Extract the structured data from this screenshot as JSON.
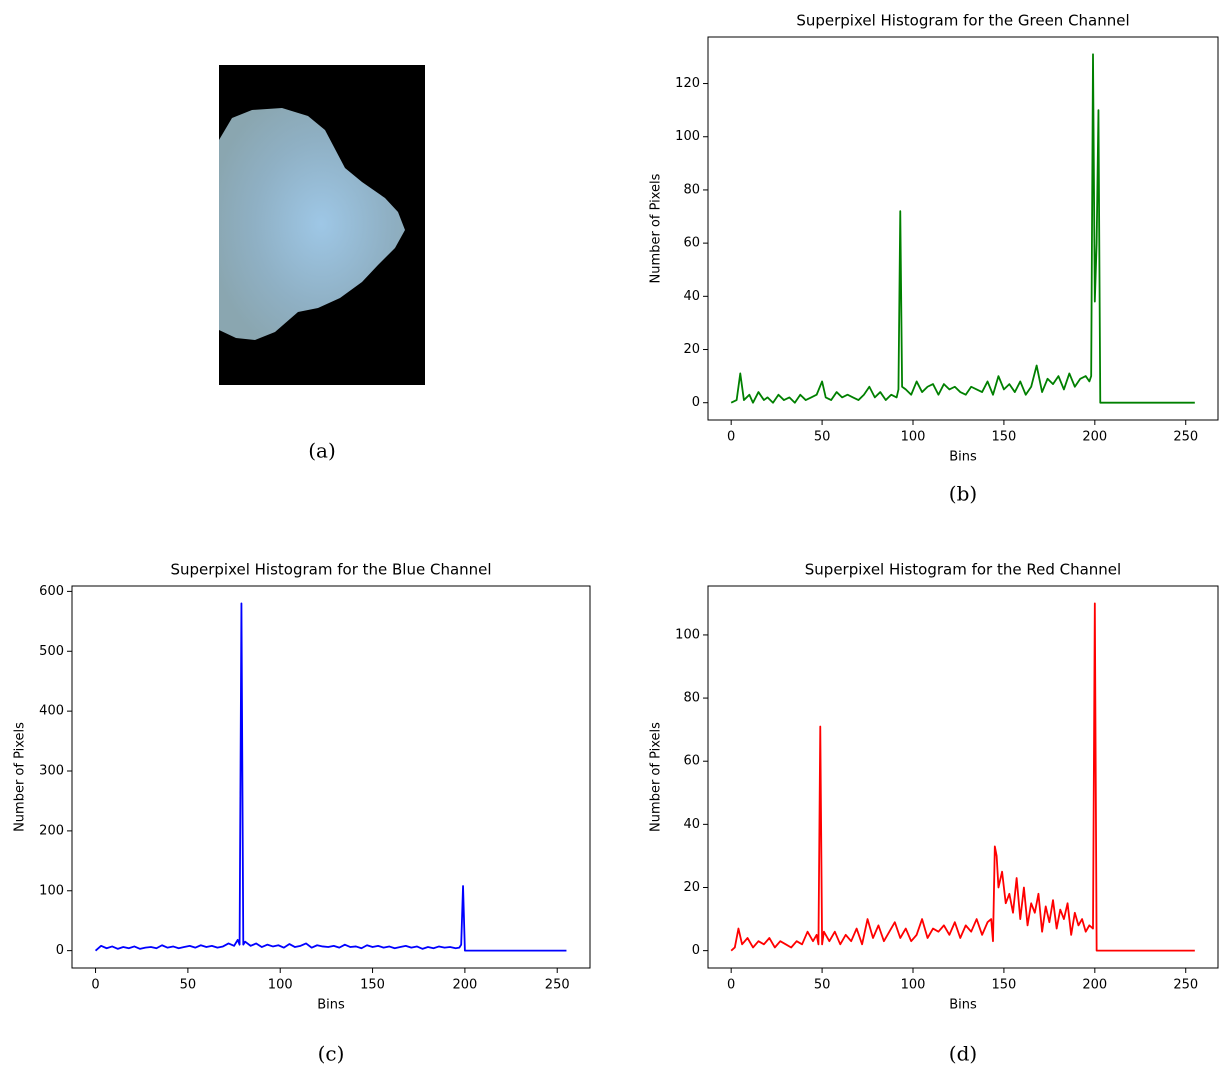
{
  "image_panel": {
    "caption": "(a)"
  },
  "chart_data": [
    {
      "type": "line",
      "title": "Superpixel Histogram for the Green Channel",
      "x_label": "Bins",
      "y_label": "Number of Pixels",
      "caption": "(b)",
      "xlim": [
        -12.75,
        267.75
      ],
      "xticks": [
        0,
        50,
        100,
        150,
        200,
        250
      ],
      "ylim": [
        -6.5,
        137.5
      ],
      "yticks": [
        0,
        20,
        40,
        60,
        80,
        100,
        120
      ],
      "series": [
        {
          "color": "#008000",
          "x": [
            0,
            3,
            5,
            7,
            10,
            12,
            15,
            18,
            20,
            23,
            26,
            29,
            32,
            35,
            38,
            41,
            44,
            47,
            50,
            52,
            55,
            58,
            61,
            64,
            67,
            70,
            73,
            76,
            79,
            82,
            85,
            88,
            91,
            92,
            93,
            94,
            96,
            99,
            102,
            105,
            108,
            111,
            114,
            117,
            120,
            123,
            126,
            129,
            132,
            135,
            138,
            141,
            144,
            147,
            150,
            153,
            156,
            159,
            162,
            165,
            168,
            171,
            174,
            177,
            180,
            183,
            186,
            189,
            192,
            195,
            197,
            198,
            199,
            200,
            201,
            202,
            203,
            205,
            255
          ],
          "values": [
            0,
            1,
            11,
            1,
            3,
            0,
            4,
            1,
            2,
            0,
            3,
            1,
            2,
            0,
            3,
            1,
            2,
            3,
            8,
            2,
            1,
            4,
            2,
            3,
            2,
            1,
            3,
            6,
            2,
            4,
            1,
            3,
            2,
            5,
            72,
            6,
            5,
            3,
            8,
            4,
            6,
            7,
            3,
            7,
            5,
            6,
            4,
            3,
            6,
            5,
            4,
            8,
            3,
            10,
            5,
            7,
            4,
            8,
            3,
            6,
            14,
            4,
            9,
            7,
            10,
            5,
            11,
            6,
            9,
            10,
            8,
            10,
            131,
            38,
            60,
            110,
            0,
            0,
            0
          ]
        }
      ]
    },
    {
      "type": "line",
      "title": "Superpixel Histogram for the Blue Channel",
      "x_label": "Bins",
      "y_label": "Number of Pixels",
      "caption": "(c)",
      "xlim": [
        -12.75,
        267.75
      ],
      "xticks": [
        0,
        50,
        100,
        150,
        200,
        250
      ],
      "ylim": [
        -29,
        609
      ],
      "yticks": [
        0,
        100,
        200,
        300,
        400,
        500,
        600
      ],
      "series": [
        {
          "color": "#0000ff",
          "x": [
            0,
            3,
            6,
            9,
            12,
            15,
            18,
            21,
            24,
            27,
            30,
            33,
            36,
            39,
            42,
            45,
            48,
            51,
            54,
            57,
            60,
            63,
            66,
            69,
            72,
            75,
            77,
            78,
            79,
            80,
            81,
            84,
            87,
            90,
            93,
            96,
            99,
            102,
            105,
            108,
            111,
            114,
            117,
            120,
            123,
            126,
            129,
            132,
            135,
            138,
            141,
            144,
            147,
            150,
            153,
            156,
            159,
            162,
            165,
            168,
            171,
            174,
            177,
            180,
            183,
            186,
            189,
            192,
            195,
            197,
            198,
            199,
            200,
            201,
            255
          ],
          "values": [
            0,
            8,
            4,
            7,
            3,
            6,
            4,
            7,
            3,
            5,
            6,
            4,
            9,
            5,
            7,
            4,
            6,
            8,
            5,
            9,
            6,
            8,
            5,
            7,
            12,
            8,
            18,
            10,
            580,
            10,
            15,
            8,
            12,
            6,
            10,
            7,
            9,
            5,
            11,
            6,
            8,
            12,
            5,
            9,
            7,
            6,
            8,
            5,
            10,
            6,
            7,
            4,
            9,
            6,
            8,
            5,
            7,
            4,
            6,
            8,
            5,
            7,
            3,
            6,
            4,
            7,
            5,
            6,
            4,
            5,
            10,
            108,
            0,
            0,
            0
          ]
        }
      ]
    },
    {
      "type": "line",
      "title": "Superpixel Histogram for the Red Channel",
      "x_label": "Bins",
      "y_label": "Number of Pixels",
      "caption": "(d)",
      "xlim": [
        -12.75,
        267.75
      ],
      "xticks": [
        0,
        50,
        100,
        150,
        200,
        250
      ],
      "ylim": [
        -5.5,
        115.5
      ],
      "yticks": [
        0,
        20,
        40,
        60,
        80,
        100
      ],
      "series": [
        {
          "color": "#ff0000",
          "x": [
            0,
            2,
            4,
            6,
            9,
            12,
            15,
            18,
            21,
            24,
            27,
            30,
            33,
            36,
            39,
            42,
            45,
            47,
            48,
            49,
            50,
            51,
            54,
            57,
            60,
            63,
            66,
            69,
            72,
            75,
            78,
            81,
            84,
            87,
            90,
            93,
            96,
            99,
            102,
            105,
            108,
            111,
            114,
            117,
            120,
            123,
            126,
            129,
            132,
            135,
            138,
            141,
            143,
            144,
            145,
            146,
            147,
            149,
            151,
            153,
            155,
            157,
            159,
            161,
            163,
            165,
            167,
            169,
            171,
            173,
            175,
            177,
            179,
            181,
            183,
            185,
            187,
            189,
            191,
            193,
            195,
            197,
            199,
            200,
            201,
            255
          ],
          "values": [
            0,
            1,
            7,
            2,
            4,
            1,
            3,
            2,
            4,
            1,
            3,
            2,
            1,
            3,
            2,
            6,
            3,
            5,
            2,
            71,
            2,
            6,
            3,
            6,
            2,
            5,
            3,
            7,
            2,
            10,
            4,
            8,
            3,
            6,
            9,
            4,
            7,
            3,
            5,
            10,
            4,
            7,
            6,
            8,
            5,
            9,
            4,
            8,
            6,
            10,
            5,
            9,
            10,
            3,
            33,
            30,
            20,
            25,
            15,
            18,
            12,
            23,
            10,
            20,
            8,
            15,
            12,
            18,
            6,
            14,
            9,
            16,
            7,
            13,
            10,
            15,
            5,
            12,
            8,
            10,
            6,
            8,
            7,
            110,
            0,
            0
          ]
        }
      ]
    }
  ]
}
